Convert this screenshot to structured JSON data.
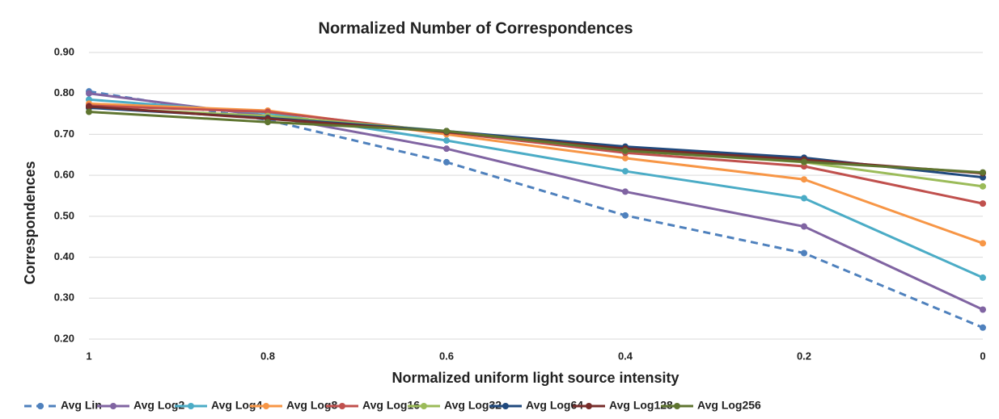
{
  "chart_data": {
    "type": "line",
    "title": "Normalized  Number of Correspondences",
    "x_label": "Normalized uniform light  source intensity",
    "y_label": "Correspondences",
    "categories": [
      "1",
      "0.8",
      "0.6",
      "0.4",
      "0.2",
      "0"
    ],
    "ylim": [
      0.2,
      0.9
    ],
    "yticks": [
      {
        "value": 0.2,
        "label": "0.20"
      },
      {
        "value": 0.3,
        "label": "0.30"
      },
      {
        "value": 0.4,
        "label": "0.40"
      },
      {
        "value": 0.5,
        "label": "0.50"
      },
      {
        "value": 0.6,
        "label": "0.60"
      },
      {
        "value": 0.7,
        "label": "0.70"
      },
      {
        "value": 0.8,
        "label": "0.80"
      },
      {
        "value": 0.9,
        "label": "0.90"
      }
    ],
    "grid": true,
    "legend": "bottom",
    "series": [
      {
        "name": "Avg Lin",
        "color": "#4f81bd",
        "dashed": true,
        "values": [
          0.805,
          0.735,
          0.632,
          0.502,
          0.41,
          0.228
        ]
      },
      {
        "name": "Avg Log2",
        "color": "#8064a2",
        "values": [
          0.8,
          0.745,
          0.665,
          0.56,
          0.475,
          0.272
        ]
      },
      {
        "name": "Avg Log4",
        "color": "#4bacc6",
        "values": [
          0.785,
          0.752,
          0.685,
          0.61,
          0.544,
          0.35
        ]
      },
      {
        "name": "Avg Log8",
        "color": "#f79646",
        "values": [
          0.775,
          0.758,
          0.7,
          0.642,
          0.59,
          0.434
        ]
      },
      {
        "name": "Avg Log16",
        "color": "#c0504d",
        "values": [
          0.77,
          0.755,
          0.705,
          0.655,
          0.622,
          0.531
        ]
      },
      {
        "name": "Avg Log32",
        "color": "#9bbb59",
        "values": [
          0.765,
          0.745,
          0.708,
          0.66,
          0.632,
          0.573
        ]
      },
      {
        "name": "Avg Log64",
        "color": "#1f497d",
        "values": [
          0.765,
          0.74,
          0.708,
          0.67,
          0.643,
          0.595
        ]
      },
      {
        "name": "Avg Log128",
        "color": "#772c2a",
        "values": [
          0.768,
          0.738,
          0.706,
          0.665,
          0.638,
          0.605
        ]
      },
      {
        "name": "Avg Log256",
        "color": "#5f7530",
        "values": [
          0.755,
          0.73,
          0.708,
          0.66,
          0.633,
          0.607
        ]
      }
    ]
  }
}
